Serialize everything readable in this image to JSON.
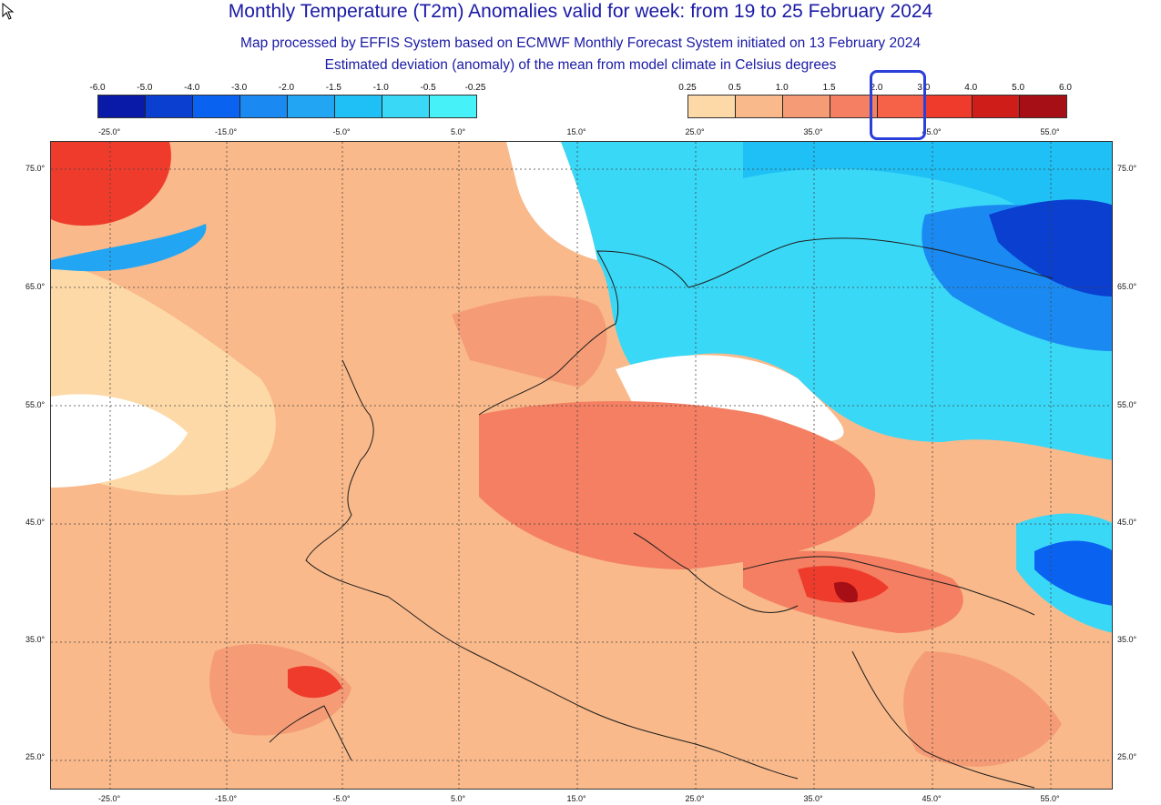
{
  "title": "Monthly Temperature (T2m) Anomalies valid for week: from 19 to 25 February 2024",
  "subtitle1": "Map processed by EFFIS System based on ECMWF Monthly Forecast System initiated on 13 February 2024",
  "subtitle2": "Estimated deviation (anomaly) of the mean from model climate in Celsius degrees",
  "legend_cold": {
    "ticks": [
      "-6.0",
      "-5.0",
      "-4.0",
      "-3.0",
      "-2.0",
      "-1.5",
      "-1.0",
      "-0.5",
      "-0.25"
    ],
    "colors": [
      "#0a1aa8",
      "#0a3fd0",
      "#0a62f0",
      "#1a8af2",
      "#22a6f3",
      "#1ec0f5",
      "#3ad8f7",
      "#46f2f8"
    ]
  },
  "legend_warm": {
    "ticks": [
      "0.25",
      "0.5",
      "1.0",
      "1.5",
      "2.0",
      "3.0",
      "4.0",
      "5.0",
      "6.0"
    ],
    "colors": [
      "#fdd9a8",
      "#f9b98a",
      "#f59c76",
      "#f47f62",
      "#f56247",
      "#ef3b2c",
      "#cf1d1a",
      "#a50f15"
    ]
  },
  "longitude_labels": [
    "-25.0°",
    "-15.0°",
    "-5.0°",
    "5.0°",
    "15.0°",
    "25.0°",
    "35.0°",
    "45.0°",
    "55.0°"
  ],
  "latitude_labels": [
    "75.0°",
    "65.0°",
    "55.0°",
    "45.0°",
    "35.0°",
    "25.0°"
  ],
  "colors": {
    "title": "#1a1aa6",
    "highlight_box": "#2b3fd9"
  }
}
